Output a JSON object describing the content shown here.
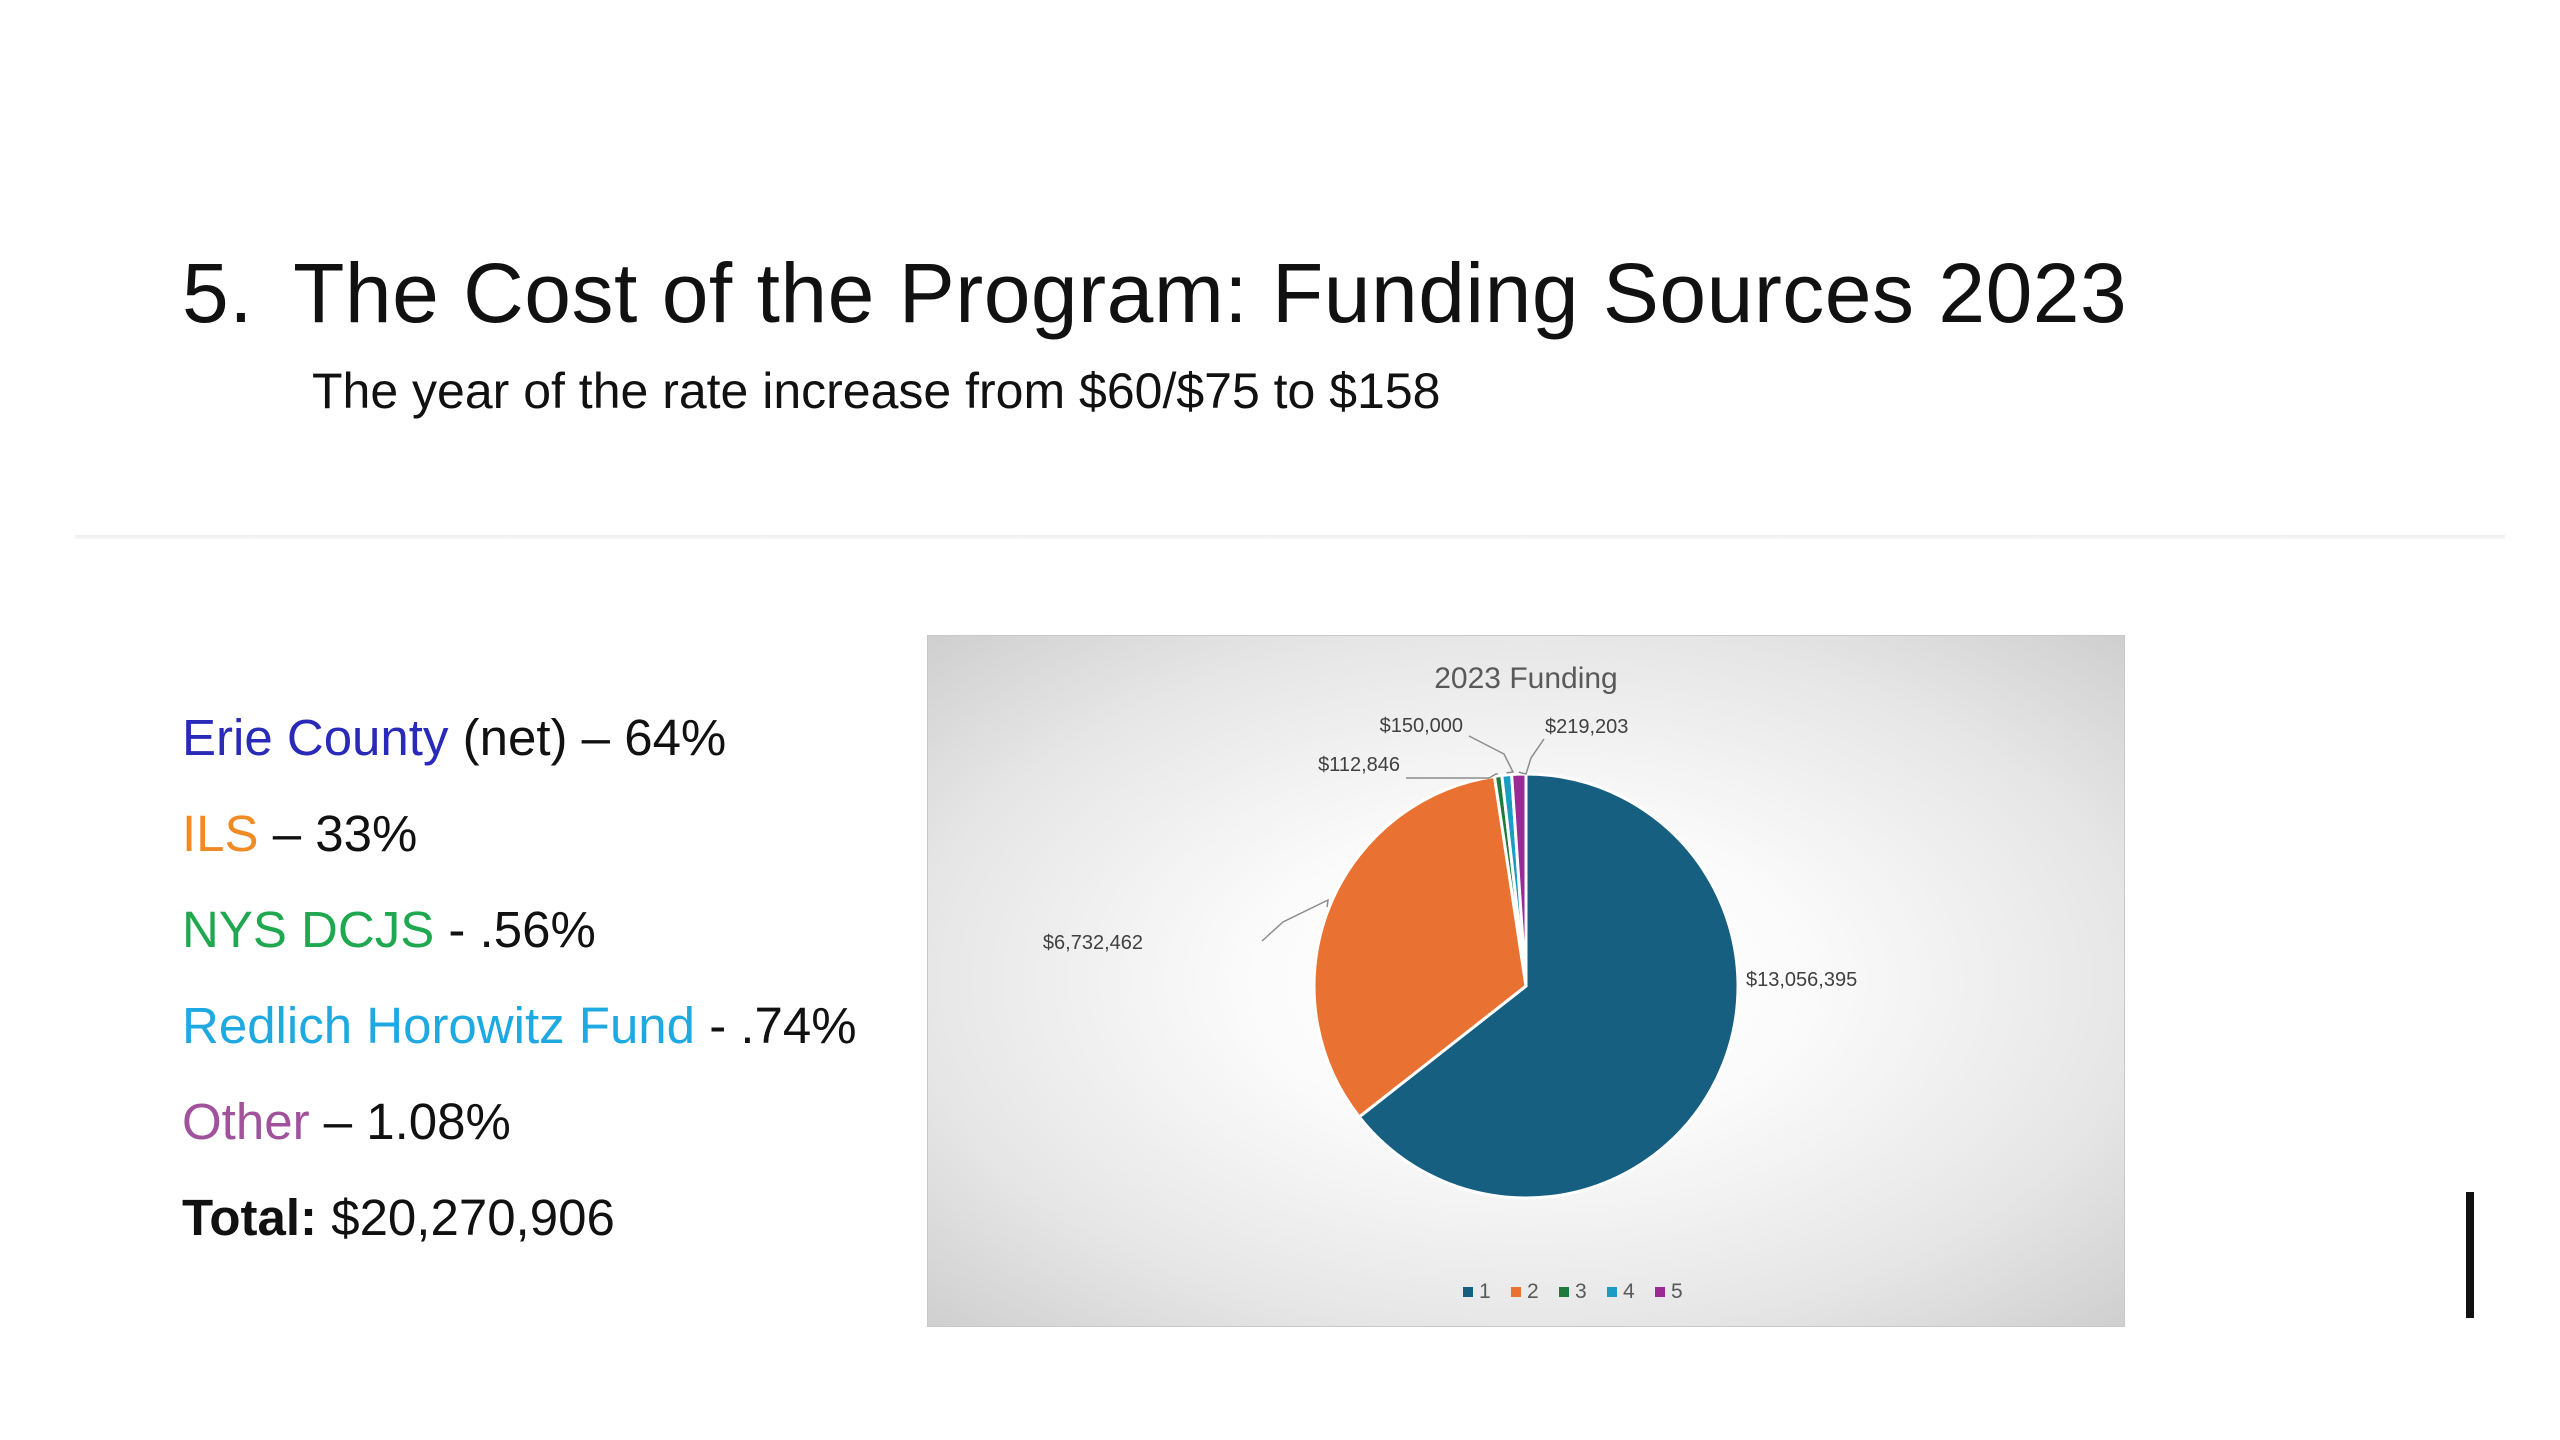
{
  "slide": {
    "number": "5.",
    "title": "The Cost of the Program: Funding Sources 2023",
    "subtitle": "The year of the rate increase from $60/$75 to $158"
  },
  "sources": [
    {
      "name": "Erie County",
      "rest": " (net) – 64%",
      "color": "#2a2ab8"
    },
    {
      "name": "ILS",
      "rest": " – 33%",
      "color": "#ef8a25"
    },
    {
      "name": "NYS DCJS",
      "rest": " - .56%",
      "color": "#1fa84f"
    },
    {
      "name": "Redlich Horowitz Fund",
      "rest": " - .74%",
      "color": "#1ea9e1"
    },
    {
      "name": "Other",
      "rest": " – 1.08%",
      "color": "#a0529c"
    }
  ],
  "total": {
    "label": "Total:",
    "value": " $20,270,906"
  },
  "chart_data": {
    "type": "pie",
    "title": "2023 Funding",
    "categories": [
      "1",
      "2",
      "3",
      "4",
      "5"
    ],
    "values": [
      13056395,
      6732462,
      112846,
      150000,
      219203
    ],
    "data_labels": [
      "$13,056,395",
      "$6,732,462",
      "$112,846",
      "$150,000",
      "$219,203"
    ],
    "colors": [
      "#165f80",
      "#e97132",
      "#1e7a3d",
      "#1a9cc4",
      "#9b2a94"
    ],
    "legend_position": "bottom"
  }
}
